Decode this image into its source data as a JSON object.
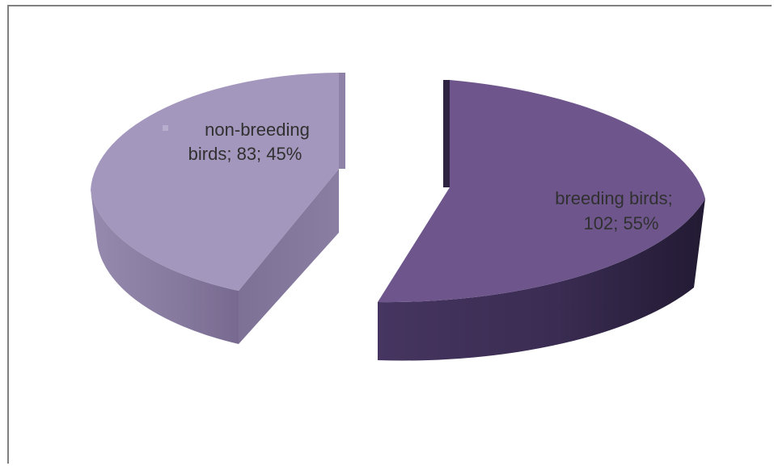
{
  "chart_data": {
    "type": "pie",
    "style": "3d-exploded",
    "series": [
      {
        "slices": [
          {
            "label": "breeding birds",
            "value": 102,
            "percent": "55%",
            "color": "#6e568d"
          },
          {
            "label": "non-breeding birds",
            "value": 83,
            "percent": "45%",
            "color": "#a497bd"
          }
        ]
      }
    ],
    "data_labels": {
      "breeding": {
        "line1": "breeding birds;",
        "line2": "102; 55%"
      },
      "non_breeding": {
        "line1": "non-breeding",
        "line2": "birds; 83; 45%"
      }
    },
    "legend": "none"
  }
}
